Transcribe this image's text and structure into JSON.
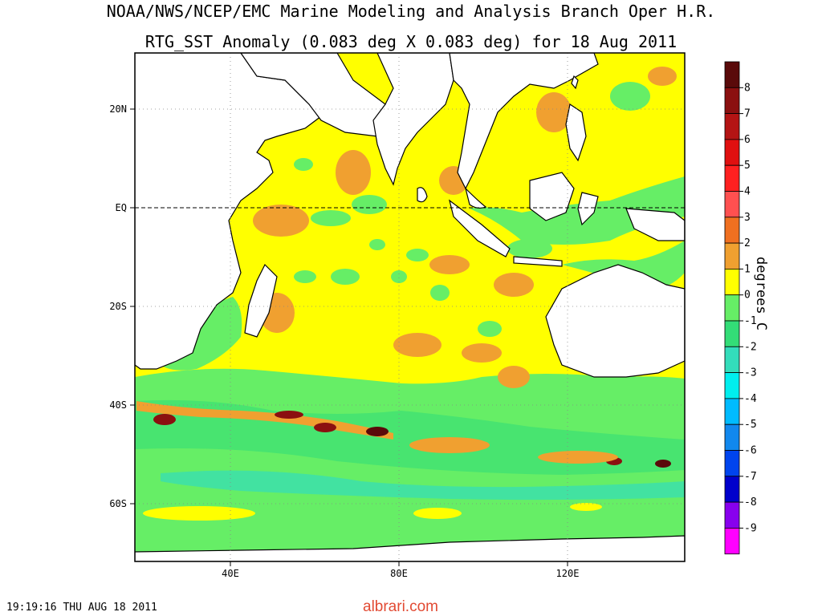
{
  "title_line1": "NOAA/NWS/NCEP/EMC Marine Modeling and Analysis Branch Oper H.R.",
  "title_line2": "RTG_SST Anomaly (0.083 deg X 0.083 deg) for 18 Aug 2011",
  "lat_ticks": [
    "20N",
    "EQ",
    "20S",
    "40S",
    "60S"
  ],
  "lon_ticks": [
    "40E",
    "80E",
    "120E"
  ],
  "colorbar": {
    "title": "degrees C",
    "labels": [
      "8",
      "7",
      "6",
      "5",
      "4",
      "3",
      "2",
      "1",
      "0",
      "-1",
      "-2",
      "-3",
      "-4",
      "-5",
      "-6",
      "-7",
      "-8",
      "-9"
    ],
    "colors": [
      "#5a0a0a",
      "#8b1010",
      "#b41414",
      "#e01010",
      "#ff2020",
      "#ff5050",
      "#f07020",
      "#f0a030",
      "#ffff00",
      "#66ee66",
      "#33dd77",
      "#33ddbb",
      "#00eeee",
      "#00bbff",
      "#1188ee",
      "#0044ee",
      "#0000cc",
      "#8800ee",
      "#ff00ff"
    ]
  },
  "timestamp": "19:19:16 THU AUG 18 2011",
  "watermark": "albrari.com"
}
